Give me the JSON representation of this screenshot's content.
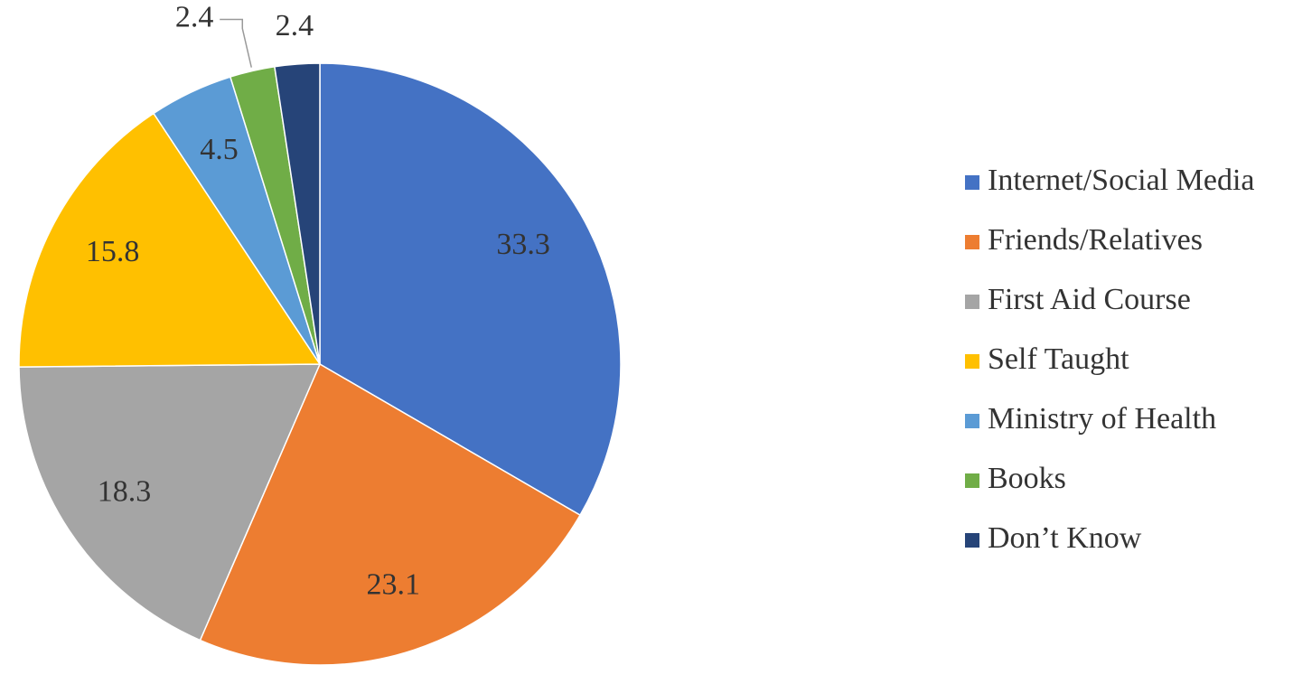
{
  "chart_data": {
    "type": "pie",
    "categories": [
      "Internet/Social Media",
      "Friends/Relatives",
      "First Aid Course",
      "Self Taught",
      "Ministry of Health",
      "Books",
      "Don’t Know"
    ],
    "values": [
      33.3,
      23.1,
      18.3,
      15.8,
      4.5,
      2.4,
      2.4
    ],
    "colors": [
      "#4472c4",
      "#ed7d31",
      "#a5a5a5",
      "#ffc000",
      "#5b9bd5",
      "#70ad47",
      "#264478"
    ],
    "legend": "right"
  }
}
